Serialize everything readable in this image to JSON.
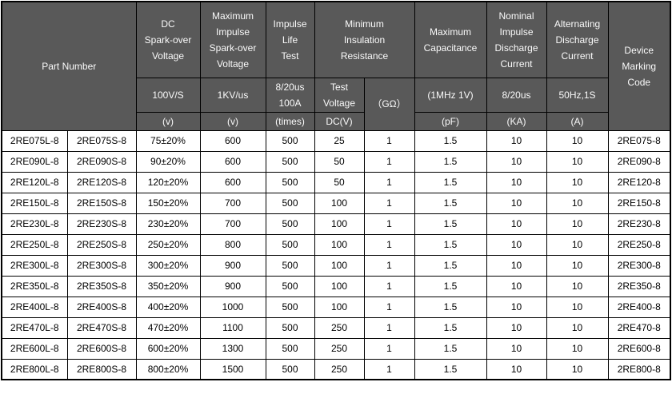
{
  "colors": {
    "header_bg": "#595959",
    "header_text": "#fafafa",
    "body_bg": "#ffffff",
    "body_text": "#000000",
    "border": "#000000"
  },
  "table": {
    "header": {
      "part_number": "Part Number",
      "dc_sparkover": {
        "title": "DC\nSpark-over\nVoltage",
        "condition": "100V/S",
        "unit": "(v)"
      },
      "max_impulse_sparkover": {
        "title": "Maximum\nImpulse\nSpark-over\nVoltage",
        "condition": "1KV/us",
        "unit": "(v)"
      },
      "impulse_life": {
        "title": "Impulse\nLife\nTest",
        "condition": "8/20us\n100A",
        "unit": "(times)"
      },
      "min_insulation": {
        "title": "Minimum\nInsulation\nResistance",
        "test_voltage": "Test\nVoltage",
        "test_voltage_unit": "DC(V)",
        "gohm": "（GΩ）"
      },
      "max_capacitance": {
        "title": "Maximum\nCapacitance",
        "condition": "(1MHz 1V)",
        "unit": "(pF)"
      },
      "nominal_impulse": {
        "title": "Nominal\nImpulse\nDischarge\nCurrent",
        "condition": "8/20us",
        "unit": "(KA)"
      },
      "alt_discharge": {
        "title": "Alternating\nDischarge\nCurrent",
        "condition": "50Hz,1S",
        "unit": "(A)"
      },
      "device_marking": "Device\nMarking\nCode"
    },
    "rows": [
      [
        "2RE075L-8",
        "2RE075S-8",
        "75±20%",
        "600",
        "500",
        "25",
        "1",
        "1.5",
        "10",
        "10",
        "2RE075-8"
      ],
      [
        "2RE090L-8",
        "2RE090S-8",
        "90±20%",
        "600",
        "500",
        "50",
        "1",
        "1.5",
        "10",
        "10",
        "2RE090-8"
      ],
      [
        "2RE120L-8",
        "2RE120S-8",
        "120±20%",
        "600",
        "500",
        "50",
        "1",
        "1.5",
        "10",
        "10",
        "2RE120-8"
      ],
      [
        "2RE150L-8",
        "2RE150S-8",
        "150±20%",
        "700",
        "500",
        "100",
        "1",
        "1.5",
        "10",
        "10",
        "2RE150-8"
      ],
      [
        "2RE230L-8",
        "2RE230S-8",
        "230±20%",
        "700",
        "500",
        "100",
        "1",
        "1.5",
        "10",
        "10",
        "2RE230-8"
      ],
      [
        "2RE250L-8",
        "2RE250S-8",
        "250±20%",
        "800",
        "500",
        "100",
        "1",
        "1.5",
        "10",
        "10",
        "2RE250-8"
      ],
      [
        "2RE300L-8",
        "2RE300S-8",
        "300±20%",
        "900",
        "500",
        "100",
        "1",
        "1.5",
        "10",
        "10",
        "2RE300-8"
      ],
      [
        "2RE350L-8",
        "2RE350S-8",
        "350±20%",
        "900",
        "500",
        "100",
        "1",
        "1.5",
        "10",
        "10",
        "2RE350-8"
      ],
      [
        "2RE400L-8",
        "2RE400S-8",
        "400±20%",
        "1000",
        "500",
        "100",
        "1",
        "1.5",
        "10",
        "10",
        "2RE400-8"
      ],
      [
        "2RE470L-8",
        "2RE470S-8",
        "470±20%",
        "1100",
        "500",
        "250",
        "1",
        "1.5",
        "10",
        "10",
        "2RE470-8"
      ],
      [
        "2RE600L-8",
        "2RE600S-8",
        "600±20%",
        "1300",
        "500",
        "250",
        "1",
        "1.5",
        "10",
        "10",
        "2RE600-8"
      ],
      [
        "2RE800L-8",
        "2RE800S-8",
        "800±20%",
        "1500",
        "500",
        "250",
        "1",
        "1.5",
        "10",
        "10",
        "2RE800-8"
      ]
    ]
  }
}
